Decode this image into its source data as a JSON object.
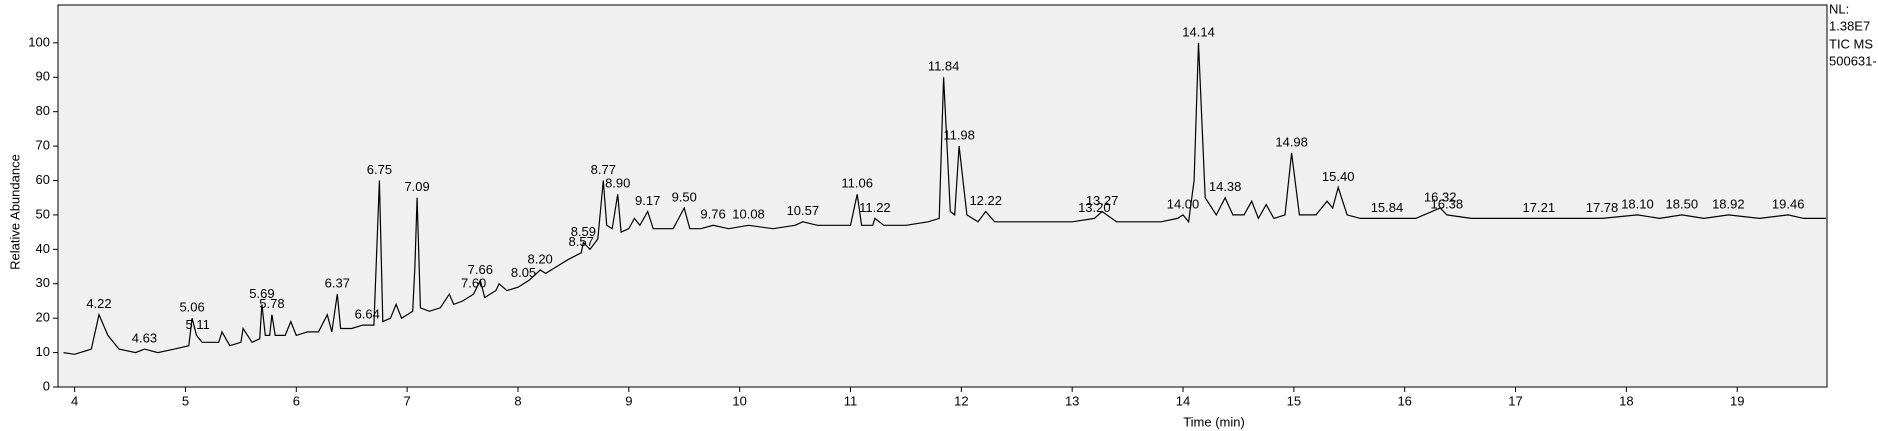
{
  "chart_data": {
    "type": "line",
    "x_label": "Time (min)",
    "y_label": "Relative Abundance",
    "info": [
      "NL:",
      "1.38E7",
      "TIC MS",
      "500631-"
    ],
    "color": "#000000",
    "xlim": [
      3.85,
      19.81
    ],
    "ylim": [
      0,
      111
    ],
    "xticks": [
      4,
      5,
      6,
      7,
      8,
      9,
      10,
      11,
      12,
      13,
      14,
      15,
      16,
      17,
      18,
      19
    ],
    "yticks": [
      0,
      10,
      20,
      30,
      40,
      50,
      60,
      70,
      80,
      90,
      100
    ],
    "x": [
      3.9,
      4.0,
      4.15,
      4.22,
      4.3,
      4.4,
      4.55,
      4.63,
      4.75,
      4.9,
      5.03,
      5.06,
      5.1,
      5.15,
      5.3,
      5.33,
      5.4,
      5.5,
      5.52,
      5.6,
      5.67,
      5.69,
      5.72,
      5.76,
      5.78,
      5.81,
      5.9,
      5.95,
      6.0,
      6.1,
      6.2,
      6.28,
      6.32,
      6.37,
      6.4,
      6.5,
      6.6,
      6.64,
      6.7,
      6.75,
      6.78,
      6.85,
      6.9,
      6.95,
      7.05,
      7.07,
      7.09,
      7.12,
      7.2,
      7.3,
      7.38,
      7.42,
      7.5,
      7.6,
      7.66,
      7.7,
      7.8,
      7.83,
      7.9,
      8.0,
      8.05,
      8.1,
      8.2,
      8.25,
      8.35,
      8.45,
      8.57,
      8.59,
      8.65,
      8.72,
      8.77,
      8.8,
      8.85,
      8.9,
      8.93,
      9.0,
      9.05,
      9.1,
      9.17,
      9.22,
      9.3,
      9.4,
      9.5,
      9.55,
      9.65,
      9.76,
      9.9,
      10.08,
      10.3,
      10.5,
      10.57,
      10.7,
      10.9,
      11.0,
      11.06,
      11.1,
      11.2,
      11.22,
      11.3,
      11.5,
      11.7,
      11.8,
      11.84,
      11.9,
      11.94,
      11.98,
      12.05,
      12.15,
      12.22,
      12.3,
      12.6,
      13.0,
      13.2,
      13.27,
      13.4,
      13.8,
      13.95,
      14.0,
      14.05,
      14.1,
      14.14,
      14.2,
      14.3,
      14.38,
      14.45,
      14.55,
      14.62,
      14.68,
      14.75,
      14.82,
      14.92,
      14.98,
      15.05,
      15.2,
      15.3,
      15.35,
      15.4,
      15.48,
      15.6,
      15.84,
      16.1,
      16.32,
      16.38,
      16.6,
      17.0,
      17.21,
      17.5,
      17.78,
      18.1,
      18.3,
      18.5,
      18.7,
      18.92,
      19.2,
      19.46,
      19.6,
      19.8
    ],
    "values": [
      10,
      9.5,
      11,
      21,
      15,
      11,
      10,
      11,
      10,
      11,
      12,
      20,
      15,
      13,
      13,
      16,
      12,
      13,
      17,
      13,
      14,
      24,
      15,
      15,
      21,
      15,
      15,
      19,
      15,
      16,
      16,
      21,
      16,
      27,
      17,
      17,
      18,
      18,
      18,
      60,
      19,
      20,
      24,
      20,
      22,
      35,
      55,
      23,
      22,
      23,
      27,
      24,
      25,
      27,
      31,
      26,
      28,
      30,
      28,
      29,
      30,
      31,
      34,
      33,
      35,
      37,
      39,
      42,
      40,
      43,
      60,
      47,
      46,
      56,
      45,
      46,
      49,
      47,
      51,
      46,
      46,
      46,
      52,
      46,
      46,
      47,
      46,
      47,
      46,
      47,
      48,
      47,
      47,
      47,
      56,
      47,
      47,
      49,
      47,
      47,
      48,
      49,
      90,
      51,
      50,
      70,
      50,
      48,
      51,
      48,
      48,
      48,
      49,
      51,
      48,
      48,
      49,
      50,
      48,
      60,
      100,
      55,
      50,
      55,
      50,
      50,
      54,
      49,
      53,
      49,
      50,
      68,
      50,
      50,
      54,
      52,
      58,
      50,
      49,
      49,
      49,
      52,
      50,
      49,
      49,
      49,
      49,
      49,
      50,
      49,
      50,
      49,
      50,
      49,
      50,
      49,
      49
    ],
    "annotations": [
      {
        "label": "4.22",
        "x": 4.22,
        "y": 21
      },
      {
        "label": "4.63",
        "x": 4.63,
        "y": 11
      },
      {
        "label": "5.06",
        "x": 5.06,
        "y": 20
      },
      {
        "label": "5.11",
        "x": 5.11,
        "y": 15
      },
      {
        "label": "5.69",
        "x": 5.69,
        "y": 24
      },
      {
        "label": "5.78",
        "x": 5.78,
        "y": 21
      },
      {
        "label": "6.37",
        "x": 6.37,
        "y": 27
      },
      {
        "label": "6.64",
        "x": 6.64,
        "y": 18
      },
      {
        "label": "6.75",
        "x": 6.75,
        "y": 60
      },
      {
        "label": "7.09",
        "x": 7.09,
        "y": 55
      },
      {
        "label": "7.60",
        "x": 7.6,
        "y": 27
      },
      {
        "label": "7.66",
        "x": 7.66,
        "y": 31
      },
      {
        "label": "8.05",
        "x": 8.05,
        "y": 30
      },
      {
        "label": "8.20",
        "x": 8.2,
        "y": 34
      },
      {
        "label": "8.57",
        "x": 8.57,
        "y": 39
      },
      {
        "label": "8.59",
        "x": 8.59,
        "y": 42
      },
      {
        "label": "8.77",
        "x": 8.77,
        "y": 60
      },
      {
        "label": "8.90",
        "x": 8.9,
        "y": 56
      },
      {
        "label": "9.17",
        "x": 9.17,
        "y": 51
      },
      {
        "label": "9.50",
        "x": 9.5,
        "y": 52
      },
      {
        "label": "9.76",
        "x": 9.76,
        "y": 47
      },
      {
        "label": "10.08",
        "x": 10.08,
        "y": 47
      },
      {
        "label": "10.57",
        "x": 10.57,
        "y": 48
      },
      {
        "label": "11.06",
        "x": 11.06,
        "y": 56
      },
      {
        "label": "11.22",
        "x": 11.22,
        "y": 49
      },
      {
        "label": "11.84",
        "x": 11.84,
        "y": 90
      },
      {
        "label": "11.98",
        "x": 11.98,
        "y": 70
      },
      {
        "label": "12.22",
        "x": 12.22,
        "y": 51
      },
      {
        "label": "13.20",
        "x": 13.2,
        "y": 49
      },
      {
        "label": "13.27",
        "x": 13.27,
        "y": 51
      },
      {
        "label": "14.00",
        "x": 14.0,
        "y": 50
      },
      {
        "label": "14.14",
        "x": 14.14,
        "y": 100
      },
      {
        "label": "14.38",
        "x": 14.38,
        "y": 55
      },
      {
        "label": "14.98",
        "x": 14.98,
        "y": 68
      },
      {
        "label": "15.40",
        "x": 15.4,
        "y": 58
      },
      {
        "label": "15.84",
        "x": 15.84,
        "y": 49
      },
      {
        "label": "16.32",
        "x": 16.32,
        "y": 52
      },
      {
        "label": "16.38",
        "x": 16.38,
        "y": 50
      },
      {
        "label": "17.21",
        "x": 17.21,
        "y": 49
      },
      {
        "label": "17.78",
        "x": 17.78,
        "y": 49
      },
      {
        "label": "18.10",
        "x": 18.1,
        "y": 50
      },
      {
        "label": "18.50",
        "x": 18.5,
        "y": 50
      },
      {
        "label": "18.92",
        "x": 18.92,
        "y": 50
      },
      {
        "label": "19.46",
        "x": 19.46,
        "y": 50
      }
    ]
  }
}
